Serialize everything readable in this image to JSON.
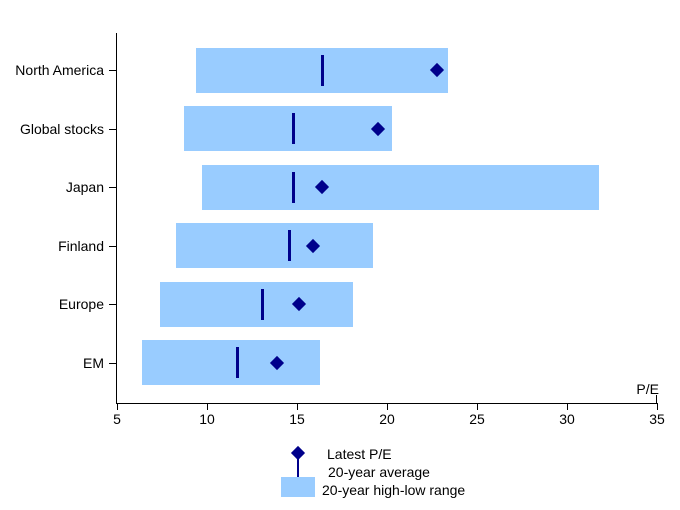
{
  "chart_data": {
    "type": "bar",
    "orientation": "horizontal",
    "title": "",
    "xlabel": "P/E",
    "xlim": [
      5,
      35
    ],
    "xticks": [
      5,
      10,
      15,
      20,
      25,
      30,
      35
    ],
    "grid": false,
    "legend_position": "bottom-center",
    "categories": [
      "North America",
      "Global stocks",
      "Japan",
      "Finland",
      "Europe",
      "EM"
    ],
    "series": [
      {
        "name": "20-year high-low range",
        "type": "range-bar",
        "low": [
          9.4,
          8.7,
          9.7,
          8.3,
          7.4,
          6.4
        ],
        "high": [
          23.4,
          20.3,
          31.8,
          19.2,
          18.1,
          16.3
        ]
      },
      {
        "name": "20-year average",
        "type": "tick-marker",
        "values": [
          16.4,
          14.8,
          14.8,
          14.6,
          13.1,
          11.7
        ]
      },
      {
        "name": "Latest P/E",
        "type": "diamond-marker",
        "values": [
          22.8,
          19.5,
          16.4,
          15.9,
          15.1,
          13.9
        ]
      }
    ],
    "colors": {
      "range_bar": "#99CCFF",
      "marker": "#00008B",
      "axis": "#000000",
      "text": "#000000",
      "background": "#FFFFFF"
    }
  },
  "legend": {
    "items": [
      {
        "label": "Latest P/E",
        "icon": "diamond"
      },
      {
        "label": "20-year average",
        "icon": "tick-line"
      },
      {
        "label": "20-year high-low range",
        "icon": "range-box"
      }
    ]
  }
}
